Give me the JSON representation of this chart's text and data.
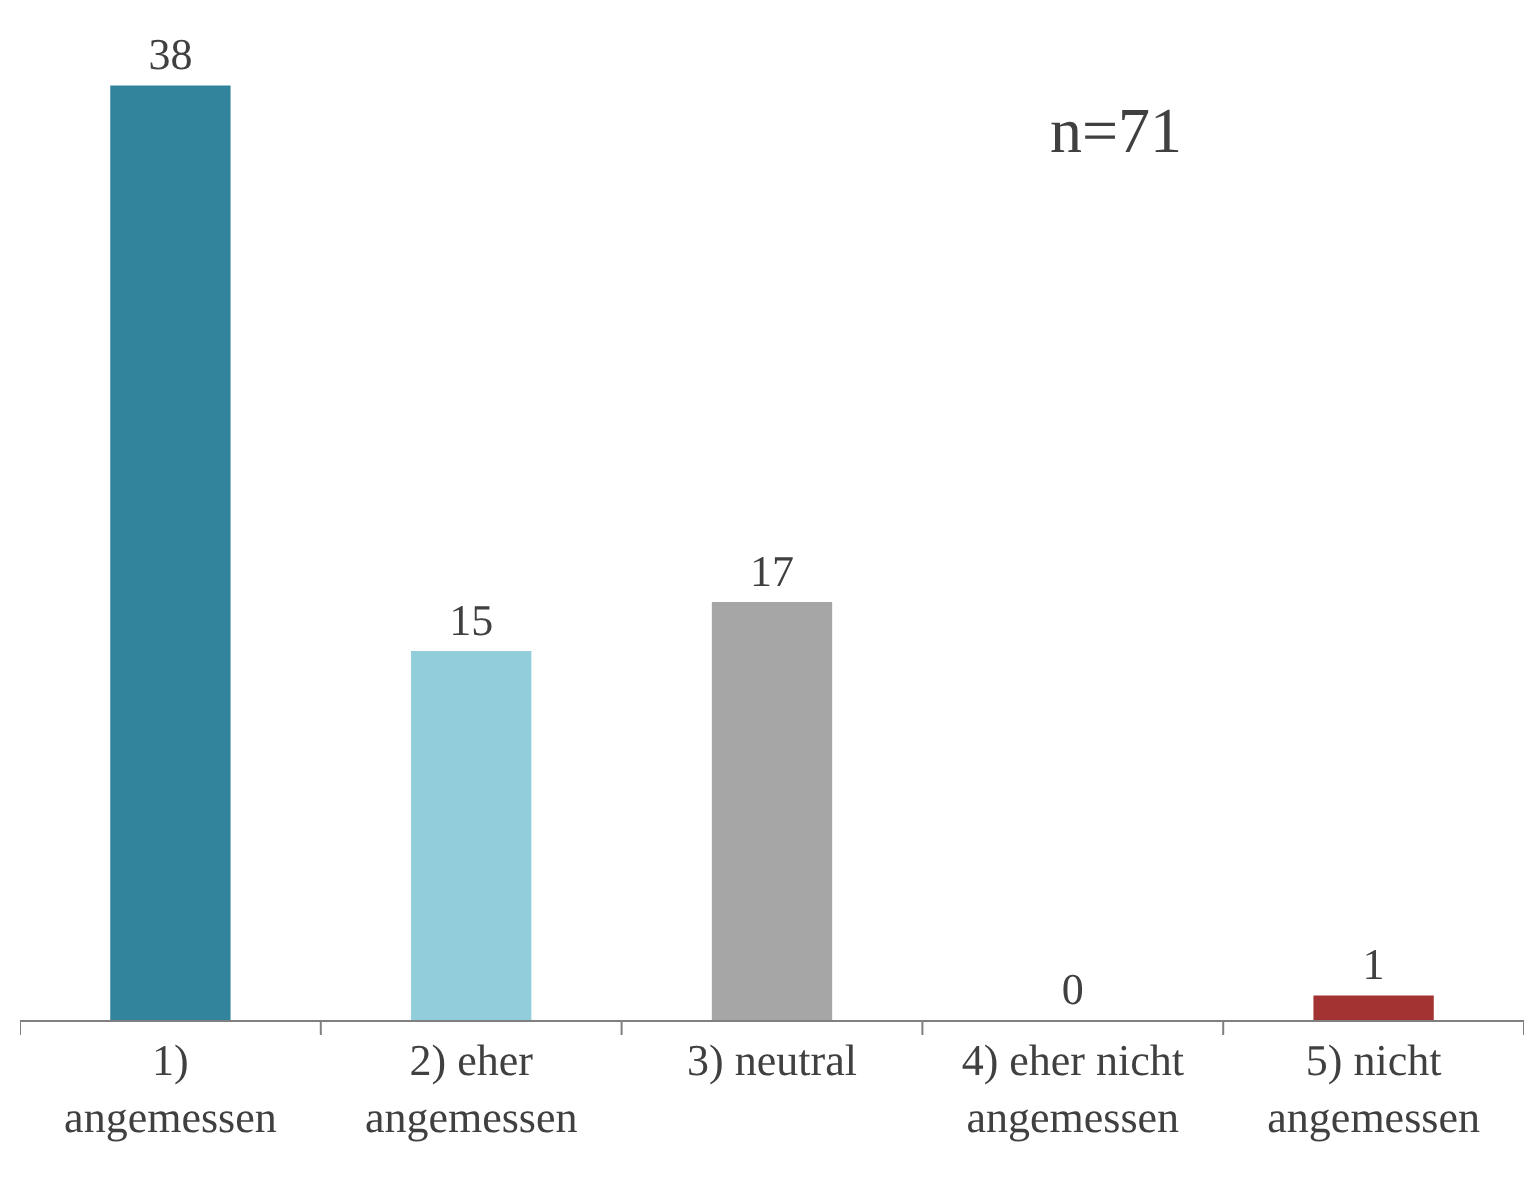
{
  "chart_data": {
    "type": "bar",
    "categories": [
      "1)\nangemessen",
      "2) eher\nangemessen",
      "3) neutral",
      "4) eher nicht\nangemessen",
      "5) nicht\nangemessen"
    ],
    "values": [
      38,
      15,
      17,
      0,
      1
    ],
    "colors": [
      "#31849b",
      "#92cddc",
      "#a6a6a6",
      "#a6a6a6",
      "#a33232"
    ],
    "data_labels": true,
    "legend": false,
    "annotations": [
      "n=71"
    ]
  }
}
